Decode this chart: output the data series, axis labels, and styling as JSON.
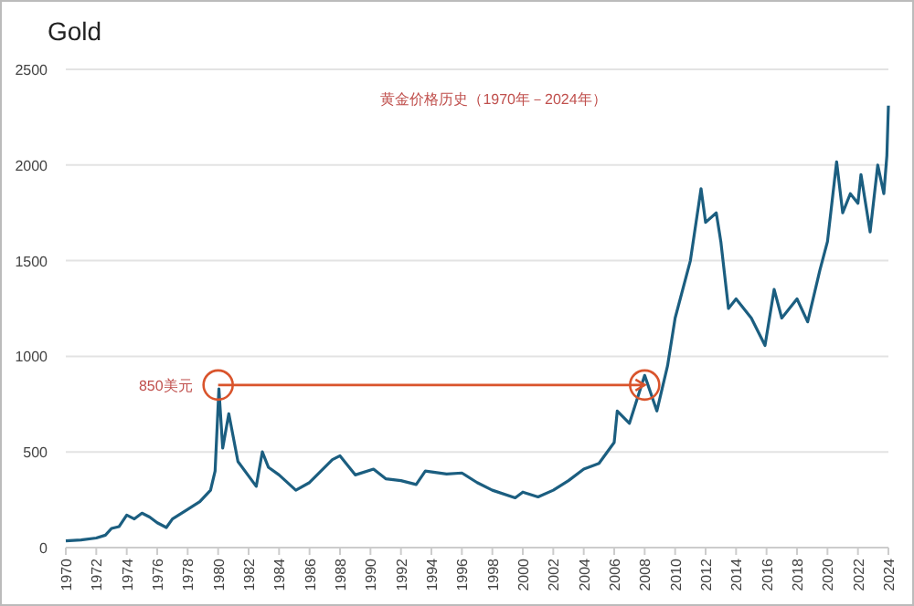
{
  "chart_data": {
    "type": "line",
    "title": "Gold",
    "subtitle": "黄金价格历史（1970年－2024年）",
    "annotations": [
      {
        "text": "850美元",
        "x": 1980,
        "y": 850
      }
    ],
    "series": [
      {
        "color": "#1b5e80",
        "x": [
          1970,
          1971,
          1972,
          1972.6,
          1973,
          1973.5,
          1974,
          1974.5,
          1975,
          1975.5,
          1976,
          1976.6,
          1977,
          1978,
          1978.8,
          1979.5,
          1979.8,
          1980.05,
          1980.3,
          1980.7,
          1981.3,
          1982.5,
          1982.9,
          1983.3,
          1984,
          1985.1,
          1986,
          1987.5,
          1988,
          1989,
          1990.2,
          1991,
          1992,
          1993,
          1993.6,
          1995,
          1996,
          1997,
          1998,
          1999.5,
          2000,
          2001,
          2002,
          2003,
          2004,
          2005,
          2006,
          2006.2,
          2007,
          2008,
          2008.8,
          2009.5,
          2010,
          2011,
          2011.7,
          2012,
          2012.7,
          2013,
          2013.5,
          2014,
          2015,
          2015.9,
          2016.5,
          2017,
          2018,
          2018.7,
          2019.5,
          2020,
          2020.6,
          2021,
          2021.5,
          2022,
          2022.2,
          2022.8,
          2023.3,
          2023.7,
          2023.9,
          2024
        ],
        "values": [
          35,
          40,
          50,
          65,
          100,
          110,
          170,
          150,
          180,
          160,
          130,
          105,
          150,
          200,
          240,
          300,
          400,
          830,
          520,
          700,
          450,
          320,
          500,
          420,
          380,
          300,
          340,
          460,
          480,
          380,
          410,
          360,
          350,
          330,
          400,
          385,
          390,
          340,
          300,
          260,
          290,
          265,
          300,
          350,
          410,
          440,
          550,
          714,
          650,
          900,
          714,
          950,
          1200,
          1500,
          1876,
          1700,
          1750,
          1600,
          1250,
          1300,
          1200,
          1057,
          1350,
          1200,
          1300,
          1180,
          1450,
          1600,
          2017,
          1750,
          1850,
          1800,
          1950,
          1650,
          2000,
          1850,
          2050,
          2310
        ]
      },
      {
        "color": "#d9542c",
        "marker": "circle",
        "x": [
          1980,
          2008
        ],
        "values": [
          850,
          850
        ]
      }
    ],
    "xlim": [
      1970,
      2024
    ],
    "xticks": [
      1970,
      1972,
      1974,
      1976,
      1978,
      1980,
      1982,
      1984,
      1986,
      1988,
      1990,
      1992,
      1994,
      1996,
      1998,
      2000,
      2002,
      2004,
      2006,
      2008,
      2010,
      2012,
      2014,
      2016,
      2018,
      2020,
      2022,
      2024
    ],
    "ylim": [
      0,
      2500
    ],
    "yticks": [
      0,
      500,
      1000,
      1500,
      2000,
      2500
    ],
    "grid": "y"
  }
}
